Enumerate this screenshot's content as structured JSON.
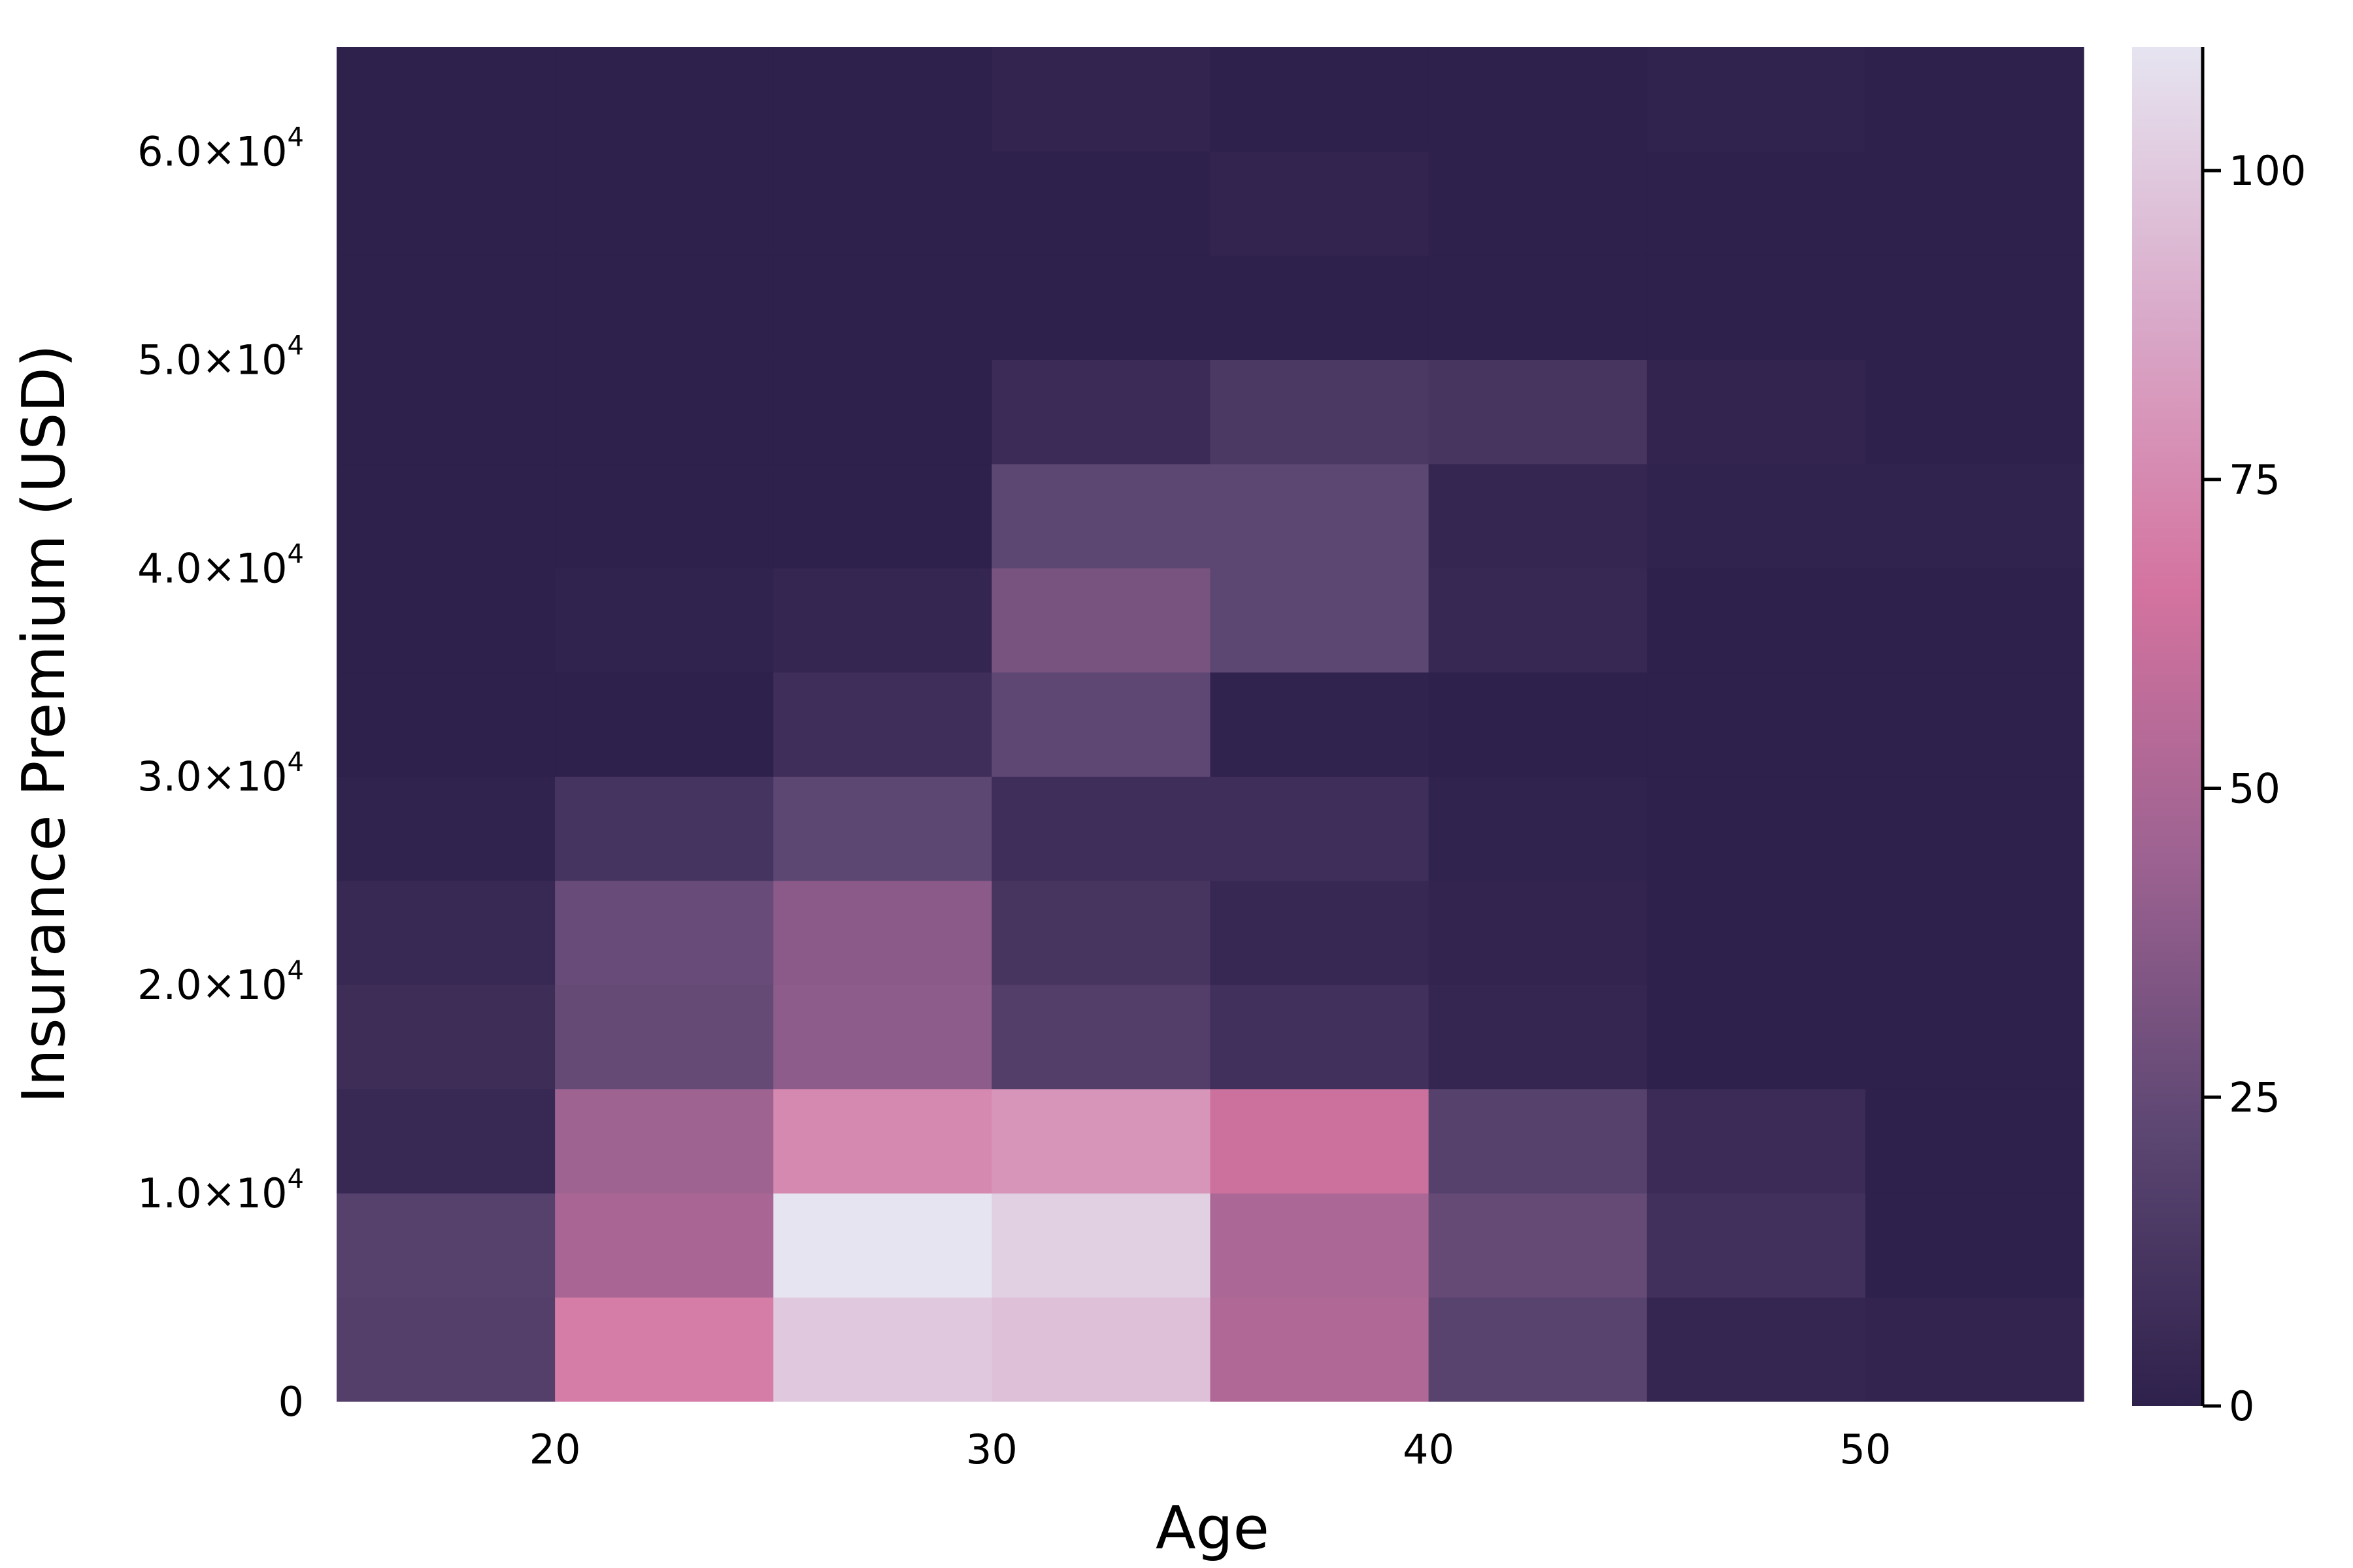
{
  "chart_data": {
    "type": "heatmap",
    "title": "",
    "xlabel": "Age",
    "ylabel": "Insurance Premium (USD)",
    "x_edges": [
      15,
      20,
      25,
      30,
      35,
      40,
      45,
      50,
      55
    ],
    "y_edges": [
      0,
      5000,
      10000,
      15000,
      20000,
      25000,
      30000,
      35000,
      40000,
      45000,
      50000,
      55000,
      60000,
      65000
    ],
    "xlim": [
      15,
      55
    ],
    "ylim": [
      0,
      65000
    ],
    "x_ticks": [
      {
        "value": 20,
        "label": "20"
      },
      {
        "value": 30,
        "label": "30"
      },
      {
        "value": 40,
        "label": "40"
      },
      {
        "value": 50,
        "label": "50"
      }
    ],
    "y_ticks": [
      {
        "value": 0,
        "label": "0",
        "exp": ""
      },
      {
        "value": 10000,
        "label": "1.0×10",
        "exp": "4"
      },
      {
        "value": 20000,
        "label": "2.0×10",
        "exp": "4"
      },
      {
        "value": 30000,
        "label": "3.0×10",
        "exp": "4"
      },
      {
        "value": 40000,
        "label": "4.0×10",
        "exp": "4"
      },
      {
        "value": 50000,
        "label": "5.0×10",
        "exp": "4"
      },
      {
        "value": 60000,
        "label": "6.0×10",
        "exp": "4"
      }
    ],
    "counts": [
      [
        18,
        70,
        100,
        97,
        52,
        20,
        3,
        2
      ],
      [
        19,
        49,
        110,
        102,
        50,
        25,
        9,
        0
      ],
      [
        5,
        45,
        75,
        80,
        63,
        19,
        6,
        0
      ],
      [
        7,
        25,
        39,
        17,
        9,
        3,
        0,
        0
      ],
      [
        5,
        26,
        38,
        12,
        4,
        2,
        0,
        0
      ],
      [
        1,
        11,
        22,
        8,
        8,
        1,
        0,
        0
      ],
      [
        0,
        0,
        8,
        23,
        1,
        0,
        0,
        0
      ],
      [
        0,
        1,
        3,
        32,
        22,
        4,
        0,
        0
      ],
      [
        0,
        0,
        0,
        22,
        22,
        3,
        1,
        1
      ],
      [
        0,
        0,
        0,
        6,
        14,
        12,
        2,
        0
      ],
      [
        0,
        0,
        0,
        0,
        0,
        0,
        0,
        0
      ],
      [
        0,
        0,
        0,
        0,
        2,
        0,
        0,
        0
      ],
      [
        0,
        0,
        0,
        2,
        0,
        0,
        1,
        0
      ]
    ],
    "colorbar": {
      "min": 0,
      "max": 110,
      "ticks": [
        0,
        25,
        50,
        75,
        100
      ],
      "colormap": [
        "#2e214b",
        "#5c4672",
        "#9c6291",
        "#d4739f",
        "#d9a9c9",
        "#e6e4f0"
      ]
    }
  }
}
